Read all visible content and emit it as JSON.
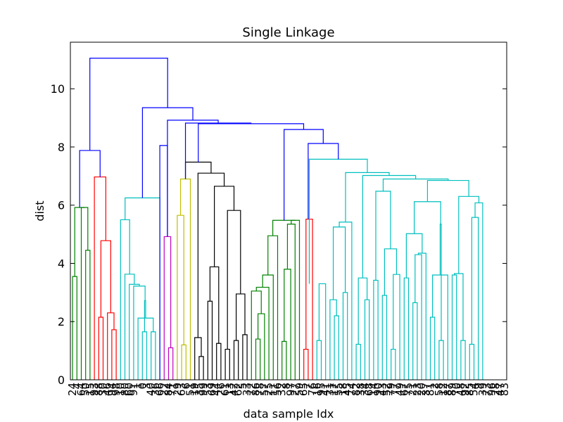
{
  "chart_data": {
    "type": "dendrogram",
    "title": "Single Linkage",
    "xlabel": "data sample Idx",
    "ylabel": "dist",
    "ylim": [
      0,
      11.6
    ],
    "yticks": [
      0,
      2,
      4,
      6,
      8,
      10
    ],
    "n_leaves": 100,
    "cluster_colors": {
      "above_threshold": "#0000ff",
      "green": "#008000",
      "red": "#ff0000",
      "cyan": "#00bfbf",
      "magenta": "#bf00bf",
      "olive": "#bfbf00",
      "black": "#000000"
    },
    "leaf_labels": [
      "24",
      "4",
      "64",
      "50",
      "15",
      "93",
      "88",
      "30",
      "46",
      "94",
      "98",
      "10",
      "80",
      "60",
      "91",
      "1",
      "0",
      "3",
      "40",
      "36",
      "66",
      "22",
      "84",
      "71",
      "29",
      "63",
      "6",
      "51",
      "19",
      "35",
      "99",
      "53",
      "69",
      "44",
      "26",
      "61",
      "13",
      "42",
      "62",
      "5",
      "33",
      "72",
      "86",
      "78",
      "57",
      "25",
      "11",
      "56",
      "32",
      "8",
      "97",
      "27",
      "59",
      "65",
      "7",
      "76",
      "16",
      "95",
      "41",
      "31",
      "17",
      "55",
      "18",
      "45",
      "74",
      "82",
      "38",
      "34",
      "68",
      "14",
      "90",
      "43",
      "52",
      "79",
      "77",
      "49",
      "67",
      "75",
      "21",
      "23",
      "20",
      "37",
      "81",
      "2",
      "58",
      "12",
      "87",
      "89",
      "70",
      "48",
      "92",
      "85",
      "54",
      "9",
      "39",
      "73",
      "96",
      "28",
      "47",
      "83"
    ],
    "linkage": [
      [
        "L0",
        "L1",
        3.55,
        "green"
      ],
      [
        "L3",
        "L4",
        4.45,
        "green"
      ],
      [
        "L2",
        "c1",
        5.92,
        "green"
      ],
      [
        "c0",
        "c2",
        5.92,
        "green"
      ],
      [
        "L6",
        "L7",
        2.15,
        "red"
      ],
      [
        "L9",
        "L10",
        1.72,
        "red"
      ],
      [
        "L8",
        "c5",
        2.3,
        "red"
      ],
      [
        "c4",
        "c6",
        4.78,
        "red"
      ],
      [
        "L5",
        "c7",
        6.97,
        "red"
      ],
      [
        "c3",
        "c8",
        7.88,
        "blue"
      ],
      [
        "L16",
        "L17",
        1.65,
        "cyan"
      ],
      [
        "L18",
        "L19",
        1.65,
        "cyan"
      ],
      [
        "L15",
        "c11",
        2.12,
        "cyan"
      ],
      [
        "c10",
        "c12",
        2.72,
        "cyan"
      ],
      [
        "L14",
        "c13",
        3.22,
        "cyan"
      ],
      [
        "L13",
        "c14",
        3.28,
        "cyan"
      ],
      [
        "L12",
        "c15",
        3.63,
        "cyan"
      ],
      [
        "L11",
        "c16",
        5.5,
        "cyan"
      ],
      [
        "L20",
        "c17",
        6.25,
        "cyan"
      ],
      [
        "L22",
        "L23",
        1.1,
        "magenta"
      ],
      [
        "L21",
        "c19",
        4.92,
        "magenta"
      ],
      [
        "L20a",
        "c20",
        0,
        "none"
      ],
      [
        "L25",
        "L26",
        1.2,
        "olive"
      ],
      [
        "L24",
        "c22",
        5.65,
        "olive"
      ],
      [
        "L27",
        "c23",
        6.9,
        "olive"
      ],
      [
        "L29",
        "L30",
        0.8,
        "black"
      ],
      [
        "L28",
        "c25",
        1.45,
        "black"
      ],
      [
        "L31",
        "L32",
        2.7,
        "black"
      ],
      [
        "L33",
        "L34",
        1.25,
        "black"
      ],
      [
        "c27",
        "c28",
        3.88,
        "black"
      ],
      [
        "L35",
        "L36",
        1.05,
        "black"
      ],
      [
        "L37",
        "L38",
        1.35,
        "black"
      ],
      [
        "L39",
        "L40",
        1.55,
        "black"
      ],
      [
        "c31",
        "c32",
        2.95,
        "black"
      ],
      [
        "c30",
        "c33",
        5.82,
        "black"
      ],
      [
        "c29",
        "c34",
        6.65,
        "black"
      ],
      [
        "c26",
        "c35",
        7.1,
        "black"
      ],
      [
        "c24",
        "c36",
        7.48,
        "black"
      ],
      [
        "L42",
        "L43",
        1.4,
        "green"
      ],
      [
        "L44",
        "c38",
        2.27,
        "green"
      ],
      [
        "L41",
        "c39",
        3.05,
        "green"
      ],
      [
        "L45",
        "c40",
        3.18,
        "green"
      ],
      [
        "L46",
        "c41",
        3.6,
        "green"
      ],
      [
        "L47",
        "c42",
        4.95,
        "green"
      ],
      [
        "L48",
        "L49",
        1.32,
        "green"
      ],
      [
        "L50",
        "c44",
        3.8,
        "green"
      ],
      [
        "L51",
        "c45",
        5.35,
        "green"
      ],
      [
        "L52",
        "c46",
        5.48,
        "green"
      ],
      [
        "c43",
        "c47",
        5.48,
        "green"
      ],
      [
        "L53",
        "L54",
        1.05,
        "red"
      ],
      [
        "L55",
        "c49",
        5.52,
        "red"
      ],
      [
        "L56",
        "L57",
        1.35,
        "cyan"
      ],
      [
        "L58",
        "c51",
        3.3,
        "cyan"
      ]
    ]
  }
}
